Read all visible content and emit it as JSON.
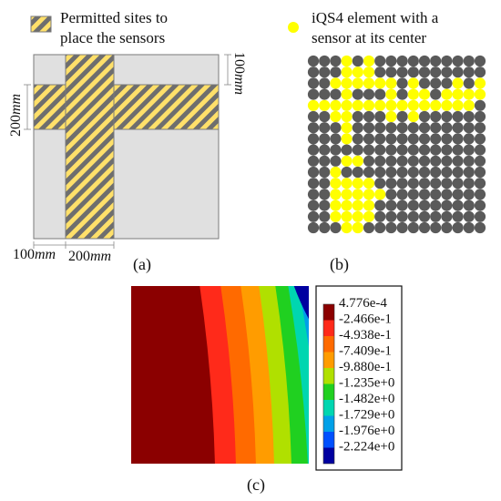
{
  "panel_a": {
    "legend_label_line1": "Permitted sites to",
    "legend_label_line2": "place the sensors",
    "dim_top_right_value": "100",
    "dim_top_right_unit": "mm",
    "dim_left_value": "200",
    "dim_left_unit": "mm",
    "dim_bottom_left_value": "100",
    "dim_bottom_left_unit": "mm",
    "dim_bottom_mid_value": "200",
    "dim_bottom_mid_unit": "mm",
    "caption": "(a)",
    "colors": {
      "plate": "#e0e0e0",
      "stripe_a": "#ffe06a",
      "stripe_b": "#6e6e6e",
      "outline": "#7a7a7a"
    }
  },
  "panel_b": {
    "legend_label_line1": "iQS4 element with a",
    "legend_label_line2": "sensor at its center",
    "caption": "(b)",
    "grid_size": 16,
    "sensor_rows": [
      "0001010000000000",
      "0001110000000000",
      "0011111101000101",
      "0001000101101111",
      "1111111111111110",
      "0011000101000000",
      "0001000000000000",
      "0001000000000000",
      "0000000000000000",
      "0001100000000000",
      "0010000000000000",
      "0011110000000000",
      "0011111000000000",
      "0011110000000000",
      "0011110000000000",
      "0001100000000000"
    ],
    "colors": {
      "sensor": "#ffff00",
      "element": "#5a5a5a"
    }
  },
  "panel_c": {
    "caption": "(c)",
    "legend_values": [
      "4.776e-4",
      "-2.466e-1",
      "-4.938e-1",
      "-7.409e-1",
      "-9.880e-1",
      "-1.235e+0",
      "-1.482e+0",
      "-1.729e+0",
      "-1.976e+0",
      "-2.224e+0"
    ],
    "legend_colors": [
      "#8b0000",
      "#ff2a1a",
      "#ff6a00",
      "#ff9c00",
      "#b0e000",
      "#20d020",
      "#00d6b0",
      "#00a0e8",
      "#0050ff",
      "#0000a0"
    ],
    "band_colors": [
      "#8b0000",
      "#ff2a1a",
      "#ff6a00",
      "#ff9c00",
      "#b0e000",
      "#20d020",
      "#00d6b0",
      "#00a0e8",
      "#0050ff",
      "#0000a0"
    ]
  }
}
